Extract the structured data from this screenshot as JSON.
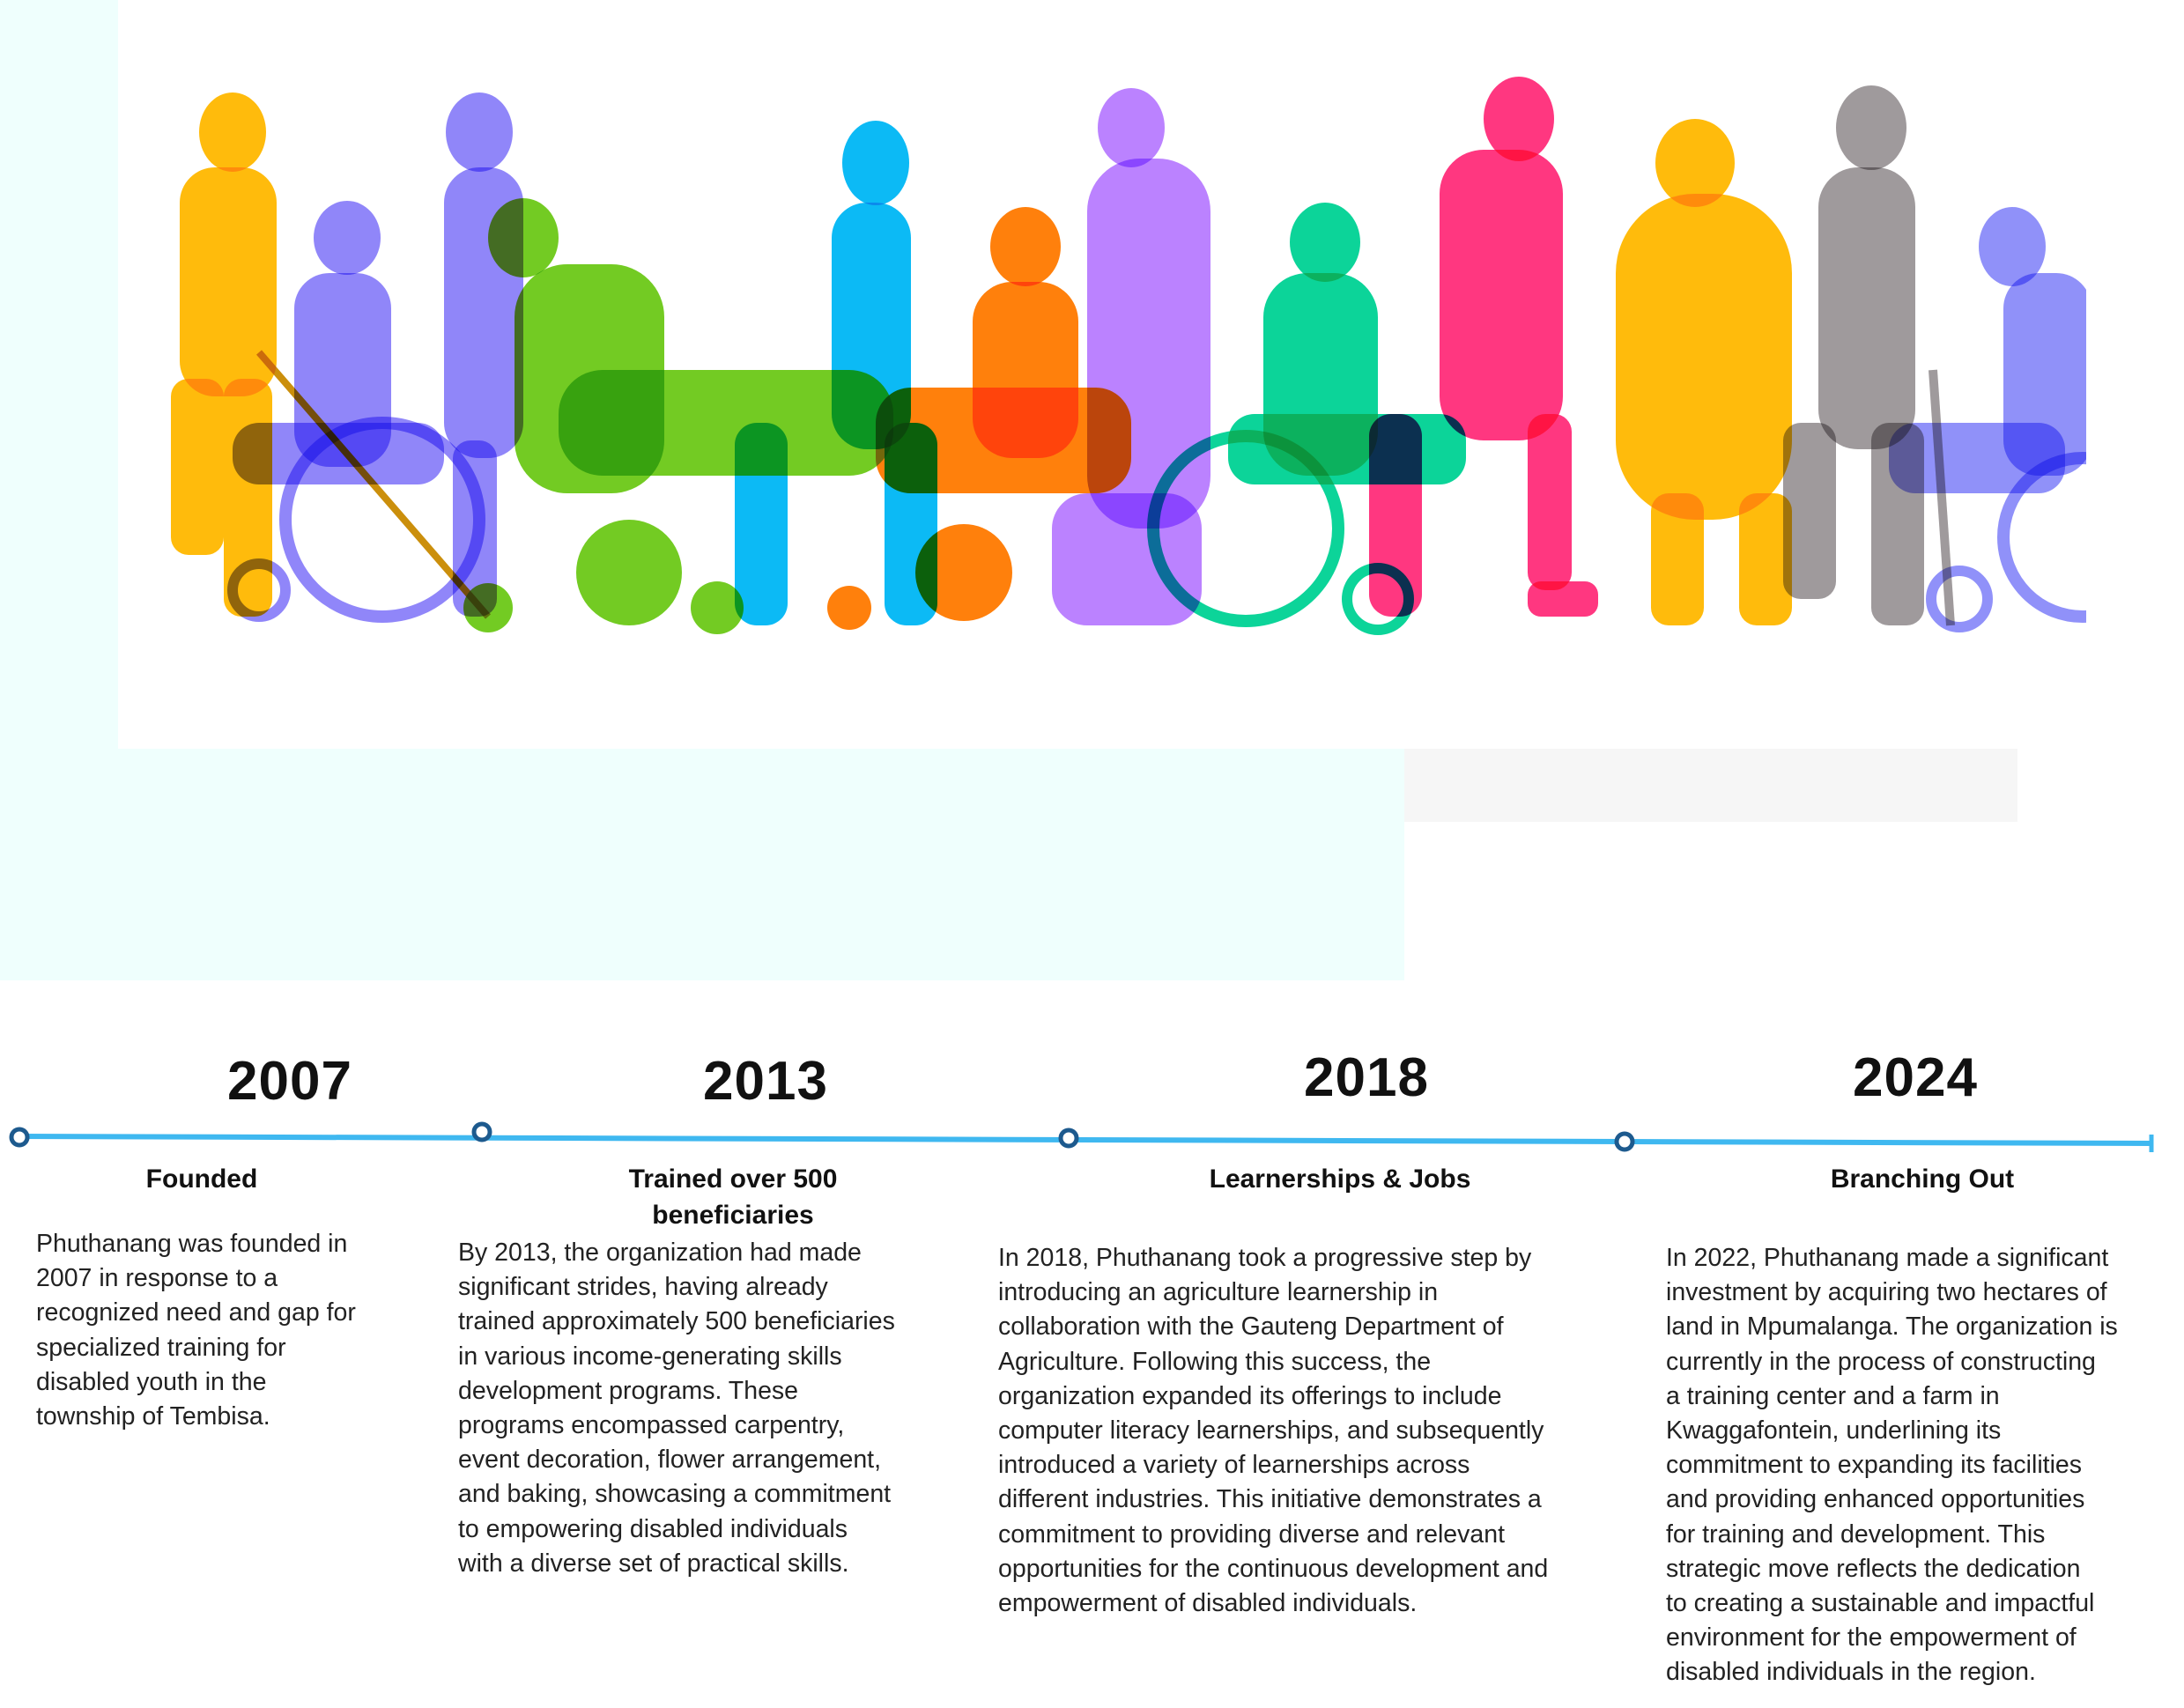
{
  "colors": {
    "line": "#3fb8f0",
    "node": "#1d5a8e",
    "bg_tint": "#effffd"
  },
  "hero": {
    "image_alt_icon": "people-with-disabilities-silhouettes"
  },
  "timeline": [
    {
      "year": "2007",
      "title_lines": [
        "Founded"
      ],
      "body_lines": [
        "Phuthanang was founded in",
        "2007 in response to a",
        "recognized need and gap for",
        "specialized training for",
        "disabled youth in the",
        "township of Tembisa."
      ]
    },
    {
      "year": "2013",
      "title_lines": [
        "Trained over 500",
        "beneficiaries"
      ],
      "body_lines": [
        "By 2013, the organization had made",
        "significant strides, having already",
        "trained approximately 500 beneficiaries",
        "in various income-generating skills",
        "development programs. These",
        "programs encompassed carpentry,",
        "event decoration, flower arrangement,",
        "and baking, showcasing a commitment",
        "to empowering disabled individuals",
        "with a diverse set of practical skills."
      ]
    },
    {
      "year": "2018",
      "title_lines": [
        "Learnerships & Jobs"
      ],
      "body_lines": [
        "In 2018, Phuthanang took a progressive step by",
        "introducing an agriculture learnership in",
        "collaboration with the Gauteng Department of",
        "Agriculture. Following this success, the",
        "organization expanded its offerings to include",
        "computer literacy learnerships, and subsequently",
        "introduced a variety of learnerships across",
        "different industries. This initiative demonstrates a",
        "commitment to providing diverse and relevant",
        "opportunities for the continuous development and",
        "empowerment of disabled individuals."
      ]
    },
    {
      "year": "2024",
      "title_lines": [
        "Branching Out"
      ],
      "body_lines": [
        "In 2022, Phuthanang made a significant",
        "investment by acquiring two hectares of",
        "land in Mpumalanga. The organization is",
        "currently in the process of constructing",
        "a training center and a farm in",
        "Kwaggafontein, underlining its",
        "commitment to expanding its facilities",
        "and providing enhanced opportunities",
        "for training and development. This",
        "strategic move reflects the dedication",
        "to creating a sustainable and impactful",
        "environment for the empowerment of",
        "disabled individuals in the region."
      ]
    }
  ]
}
